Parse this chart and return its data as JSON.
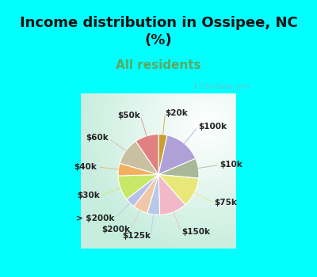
{
  "title": "Income distribution in Ossipee, NC\n(%)",
  "subtitle": "All residents",
  "bg_cyan": "#00FFFF",
  "labels": [
    "$20k",
    "$100k",
    "$10k",
    "$75k",
    "$150k",
    "$125k",
    "$200k",
    "> $200k",
    "$30k",
    "$40k",
    "$60k",
    "$50k"
  ],
  "sizes": [
    3.5,
    15,
    8,
    12,
    11,
    5,
    6,
    4,
    10,
    5,
    11,
    9.5
  ],
  "colors": [
    "#c8a030",
    "#b0a0d8",
    "#a8b898",
    "#e8e878",
    "#f0b8c8",
    "#b8c8e8",
    "#f0c8a8",
    "#b8c0e8",
    "#c8e868",
    "#f0b060",
    "#c8c0a0",
    "#e08080"
  ],
  "watermark": "City-Data.com",
  "title_fontsize": 13,
  "subtitle_fontsize": 11,
  "label_fontsize": 7.5,
  "title_color": "#111111",
  "subtitle_color": "#5aaa60"
}
